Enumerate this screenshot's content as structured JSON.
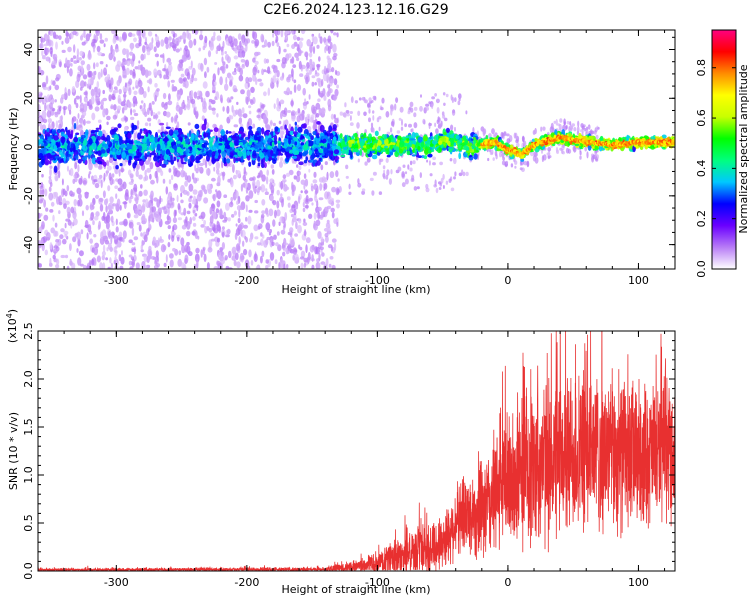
{
  "title": "C2E6.2024.123.12.16.G29",
  "chart_data": [
    {
      "type": "heatmap",
      "name": "spectrogram",
      "xlabel": "Height of straight line (km)",
      "ylabel": "Frequency (Hz)",
      "xlim": [
        -360,
        128
      ],
      "ylim": [
        -50,
        48
      ],
      "xticks": [
        -300,
        -200,
        -100,
        0,
        100
      ],
      "xtick_labels": [
        "-300",
        "-200",
        "-100",
        "0",
        "100"
      ],
      "yticks": [
        -40,
        -20,
        0,
        20,
        40
      ],
      "ytick_labels": [
        "-40",
        "-20",
        "0",
        "20",
        "40"
      ],
      "colorbar": {
        "label": "Normalized spectral amplitude",
        "range": [
          0.0,
          0.95
        ],
        "ticks": [
          0.0,
          0.2,
          0.4,
          0.6,
          0.8
        ],
        "tick_labels": [
          "0.0",
          "0.2",
          "0.4",
          "0.6",
          "0.8"
        ],
        "colors": [
          "#ffffff",
          "#b87cf6",
          "#6a00ff",
          "#0000ff",
          "#00c8ff",
          "#00ff7f",
          "#00ff00",
          "#c8ff00",
          "#ffff00",
          "#ff8c00",
          "#ff0000",
          "#ff0080"
        ]
      },
      "band_center_hz": [
        {
          "x": -360,
          "f": 0
        },
        {
          "x": -130,
          "f": 1
        },
        {
          "x": -100,
          "f": 1
        },
        {
          "x": -60,
          "f": 1
        },
        {
          "x": -45,
          "f": 3
        },
        {
          "x": -30,
          "f": 0
        },
        {
          "x": -10,
          "f": 2
        },
        {
          "x": 0,
          "f": -1
        },
        {
          "x": 10,
          "f": -3
        },
        {
          "x": 20,
          "f": 1
        },
        {
          "x": 40,
          "f": 4
        },
        {
          "x": 60,
          "f": 2
        },
        {
          "x": 80,
          "f": 1
        },
        {
          "x": 100,
          "f": 2
        },
        {
          "x": 128,
          "f": 2
        }
      ]
    },
    {
      "type": "line",
      "name": "snr",
      "xlabel": "Height of straight line (km)",
      "ylabel": "SNR (10 * v/v)",
      "scale_label": "(x10",
      "scale_exp": "4",
      "scale_close": ")",
      "xlim": [
        -360,
        128
      ],
      "ylim": [
        0,
        25000
      ],
      "xticks": [
        -300,
        -200,
        -100,
        0,
        100
      ],
      "xtick_labels": [
        "-300",
        "-200",
        "-100",
        "0",
        "100"
      ],
      "yticks": [
        0,
        5000,
        10000,
        15000,
        20000,
        25000
      ],
      "ytick_labels": [
        "0.0",
        "0.5",
        "1.0",
        "1.5",
        "2.0",
        "2.5"
      ],
      "color": "#e83030",
      "envelope": [
        {
          "x": -360,
          "base": 100,
          "amp": 200
        },
        {
          "x": -140,
          "base": 150,
          "amp": 300
        },
        {
          "x": -110,
          "base": 500,
          "amp": 1000
        },
        {
          "x": -80,
          "base": 1500,
          "amp": 2500
        },
        {
          "x": -50,
          "base": 3000,
          "amp": 3500
        },
        {
          "x": -35,
          "base": 6000,
          "amp": 4500
        },
        {
          "x": -20,
          "base": 6000,
          "amp": 6000
        },
        {
          "x": -5,
          "base": 9000,
          "amp": 8000
        },
        {
          "x": 20,
          "base": 11000,
          "amp": 10000
        },
        {
          "x": 60,
          "base": 12500,
          "amp": 10000
        },
        {
          "x": 100,
          "base": 12000,
          "amp": 9000
        },
        {
          "x": 128,
          "base": 12500,
          "amp": 8000
        }
      ]
    }
  ]
}
